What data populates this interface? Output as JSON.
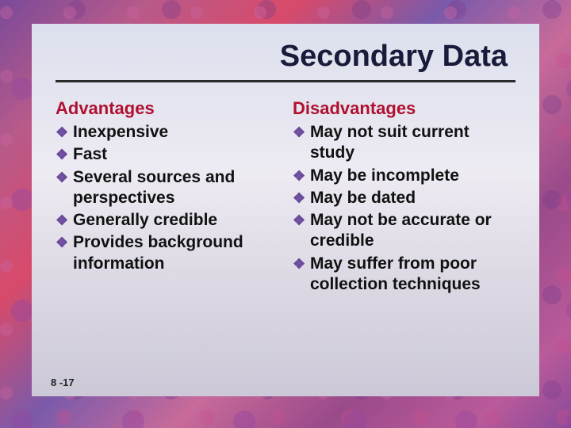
{
  "title": "Secondary Data",
  "rule_color": "#2a2a2a",
  "bullet_glyph": "❖",
  "bullet_color": "#6a4a9a",
  "advantages": {
    "heading": "Advantages",
    "heading_color": "#b01030",
    "items": [
      "Inexpensive",
      "Fast",
      "Several sources and perspectives",
      "Generally credible",
      "Provides background information"
    ]
  },
  "disadvantages": {
    "heading": "Disadvantages",
    "heading_color": "#b01030",
    "items": [
      "May not suit current study",
      "May be incomplete",
      "May be dated",
      "May not be accurate or credible",
      "May suffer from poor collection techniques"
    ]
  },
  "page_number": "8 -17",
  "typography": {
    "title_fontsize": 38,
    "heading_fontsize": 22,
    "body_fontsize": 21,
    "font_family": "Arial",
    "body_weight": "bold"
  },
  "layout": {
    "slide_bg": "#f0eef5",
    "border_palette": [
      "#7a4a9a",
      "#b85a8a",
      "#d84a6a",
      "#7a5aaa",
      "#c86a9a",
      "#9a4a8a",
      "#ba5a9a"
    ],
    "columns": 2
  }
}
